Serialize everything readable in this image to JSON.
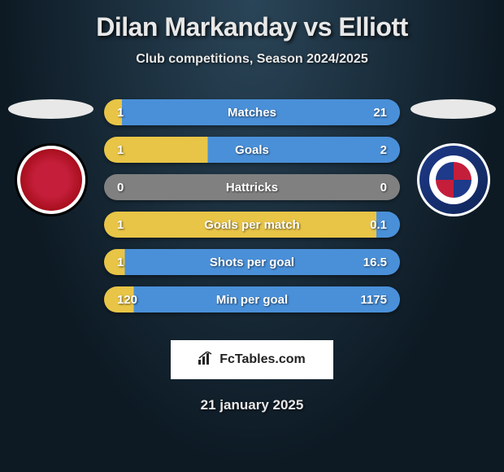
{
  "title": "Dilan Markanday vs Elliott",
  "subtitle": "Club competitions, Season 2024/2025",
  "date": "21 january 2025",
  "branding": {
    "site_name": "FcTables.com"
  },
  "colors": {
    "row_blue": "#4a90d9",
    "row_yellow": "#e8c547",
    "row_gray": "#808080",
    "text_white": "#ffffff",
    "badge_left_primary": "#c41e3a",
    "badge_right_primary": "#1e3a8a"
  },
  "stats": [
    {
      "label": "Matches",
      "left_value": "1",
      "right_value": "21",
      "left_width_pct": 6,
      "right_width_pct": 94,
      "left_color": "#e8c547",
      "right_color": "#4a90d9"
    },
    {
      "label": "Goals",
      "left_value": "1",
      "right_value": "2",
      "left_width_pct": 35,
      "right_width_pct": 65,
      "left_color": "#e8c547",
      "right_color": "#4a90d9"
    },
    {
      "label": "Hattricks",
      "left_value": "0",
      "right_value": "0",
      "left_width_pct": 50,
      "right_width_pct": 50,
      "left_color": "#808080",
      "right_color": "#808080"
    },
    {
      "label": "Goals per match",
      "left_value": "1",
      "right_value": "0.1",
      "left_width_pct": 92,
      "right_width_pct": 8,
      "left_color": "#e8c547",
      "right_color": "#4a90d9"
    },
    {
      "label": "Shots per goal",
      "left_value": "1",
      "right_value": "16.5",
      "left_width_pct": 7,
      "right_width_pct": 93,
      "left_color": "#e8c547",
      "right_color": "#4a90d9"
    },
    {
      "label": "Min per goal",
      "left_value": "120",
      "right_value": "1175",
      "left_width_pct": 10,
      "right_width_pct": 90,
      "left_color": "#e8c547",
      "right_color": "#4a90d9"
    }
  ]
}
